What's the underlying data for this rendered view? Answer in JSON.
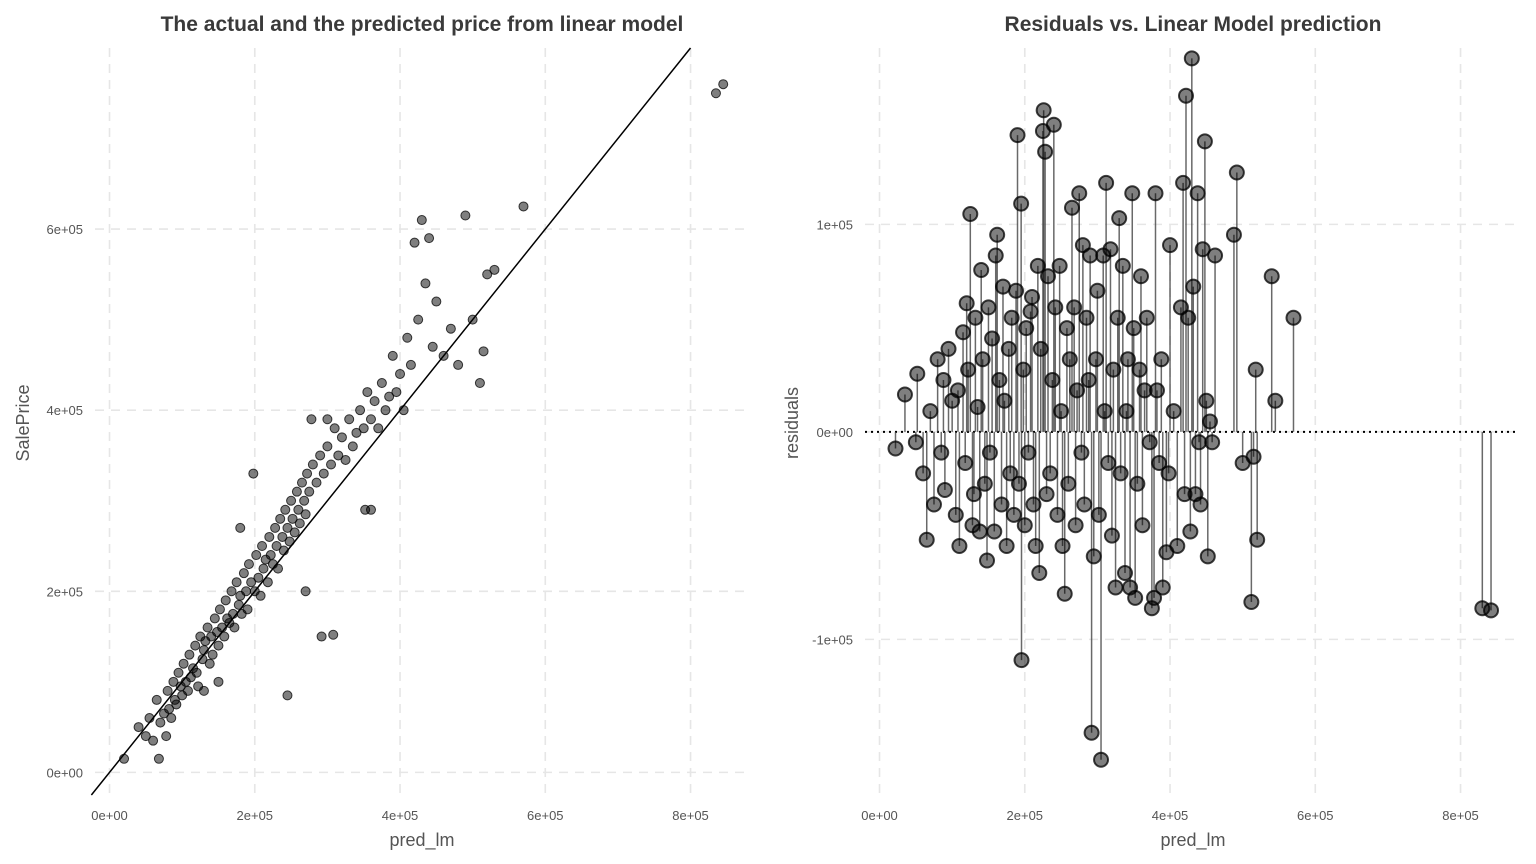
{
  "chart_data": [
    {
      "type": "scatter",
      "title": "The actual and the predicted price from linear model",
      "xlabel": "pred_lm",
      "ylabel": "SalePrice",
      "xlim": [
        -20000,
        875000
      ],
      "ylim": [
        -25000,
        800000
      ],
      "x_ticks": [
        0,
        200000,
        400000,
        600000,
        800000
      ],
      "x_tick_labels": [
        "0e+00",
        "2e+05",
        "4e+05",
        "6e+05",
        "8e+05"
      ],
      "y_ticks": [
        0,
        200000,
        400000,
        600000
      ],
      "y_tick_labels": [
        "0e+00",
        "2e+05",
        "4e+05",
        "6e+05"
      ],
      "grid": true,
      "point_color": "#000000",
      "point_opacity": 0.5,
      "reference_line": {
        "type": "identity",
        "slope": 1,
        "intercept": 0,
        "color": "#000000"
      },
      "points": [
        [
          20000,
          15000
        ],
        [
          40000,
          50000
        ],
        [
          50000,
          40000
        ],
        [
          55000,
          60000
        ],
        [
          60000,
          35000
        ],
        [
          65000,
          80000
        ],
        [
          68000,
          15000
        ],
        [
          70000,
          55000
        ],
        [
          75000,
          65000
        ],
        [
          78000,
          40000
        ],
        [
          80000,
          90000
        ],
        [
          82000,
          70000
        ],
        [
          85000,
          60000
        ],
        [
          88000,
          100000
        ],
        [
          90000,
          80000
        ],
        [
          92000,
          75000
        ],
        [
          95000,
          110000
        ],
        [
          98000,
          95000
        ],
        [
          100000,
          85000
        ],
        [
          102000,
          120000
        ],
        [
          105000,
          100000
        ],
        [
          108000,
          90000
        ],
        [
          110000,
          130000
        ],
        [
          112000,
          105000
        ],
        [
          115000,
          115000
        ],
        [
          118000,
          140000
        ],
        [
          120000,
          110000
        ],
        [
          122000,
          95000
        ],
        [
          125000,
          150000
        ],
        [
          128000,
          125000
        ],
        [
          130000,
          135000
        ],
        [
          132000,
          145000
        ],
        [
          135000,
          160000
        ],
        [
          138000,
          120000
        ],
        [
          140000,
          150000
        ],
        [
          142000,
          130000
        ],
        [
          145000,
          170000
        ],
        [
          148000,
          155000
        ],
        [
          150000,
          140000
        ],
        [
          152000,
          180000
        ],
        [
          155000,
          160000
        ],
        [
          158000,
          150000
        ],
        [
          160000,
          190000
        ],
        [
          162000,
          170000
        ],
        [
          165000,
          165000
        ],
        [
          168000,
          200000
        ],
        [
          170000,
          175000
        ],
        [
          172000,
          160000
        ],
        [
          175000,
          210000
        ],
        [
          178000,
          185000
        ],
        [
          180000,
          195000
        ],
        [
          182000,
          175000
        ],
        [
          185000,
          220000
        ],
        [
          188000,
          200000
        ],
        [
          190000,
          180000
        ],
        [
          192000,
          230000
        ],
        [
          195000,
          210000
        ],
        [
          198000,
          330000
        ],
        [
          200000,
          200000
        ],
        [
          202000,
          240000
        ],
        [
          205000,
          215000
        ],
        [
          208000,
          195000
        ],
        [
          210000,
          250000
        ],
        [
          212000,
          225000
        ],
        [
          215000,
          235000
        ],
        [
          218000,
          210000
        ],
        [
          220000,
          260000
        ],
        [
          222000,
          240000
        ],
        [
          225000,
          230000
        ],
        [
          228000,
          270000
        ],
        [
          230000,
          250000
        ],
        [
          232000,
          225000
        ],
        [
          235000,
          280000
        ],
        [
          238000,
          260000
        ],
        [
          240000,
          245000
        ],
        [
          242000,
          290000
        ],
        [
          245000,
          270000
        ],
        [
          248000,
          255000
        ],
        [
          250000,
          300000
        ],
        [
          252000,
          280000
        ],
        [
          255000,
          265000
        ],
        [
          258000,
          310000
        ],
        [
          260000,
          290000
        ],
        [
          262000,
          275000
        ],
        [
          265000,
          320000
        ],
        [
          268000,
          300000
        ],
        [
          270000,
          285000
        ],
        [
          272000,
          330000
        ],
        [
          275000,
          310000
        ],
        [
          278000,
          390000
        ],
        [
          280000,
          340000
        ],
        [
          285000,
          320000
        ],
        [
          290000,
          350000
        ],
        [
          292000,
          150000
        ],
        [
          295000,
          330000
        ],
        [
          300000,
          360000
        ],
        [
          305000,
          340000
        ],
        [
          308000,
          152000
        ],
        [
          310000,
          380000
        ],
        [
          315000,
          350000
        ],
        [
          320000,
          370000
        ],
        [
          325000,
          345000
        ],
        [
          330000,
          390000
        ],
        [
          335000,
          360000
        ],
        [
          340000,
          375000
        ],
        [
          345000,
          400000
        ],
        [
          350000,
          380000
        ],
        [
          352000,
          290000
        ],
        [
          355000,
          420000
        ],
        [
          360000,
          390000
        ],
        [
          365000,
          410000
        ],
        [
          370000,
          380000
        ],
        [
          375000,
          430000
        ],
        [
          380000,
          400000
        ],
        [
          385000,
          415000
        ],
        [
          390000,
          460000
        ],
        [
          395000,
          420000
        ],
        [
          400000,
          440000
        ],
        [
          405000,
          400000
        ],
        [
          410000,
          480000
        ],
        [
          415000,
          450000
        ],
        [
          420000,
          585000
        ],
        [
          425000,
          500000
        ],
        [
          430000,
          610000
        ],
        [
          435000,
          540000
        ],
        [
          440000,
          590000
        ],
        [
          445000,
          470000
        ],
        [
          450000,
          520000
        ],
        [
          460000,
          460000
        ],
        [
          470000,
          490000
        ],
        [
          480000,
          450000
        ],
        [
          490000,
          615000
        ],
        [
          500000,
          500000
        ],
        [
          510000,
          430000
        ],
        [
          515000,
          465000
        ],
        [
          520000,
          550000
        ],
        [
          530000,
          555000
        ],
        [
          570000,
          625000
        ],
        [
          835000,
          750000
        ],
        [
          845000,
          760000
        ],
        [
          245000,
          85000
        ],
        [
          180000,
          270000
        ],
        [
          300000,
          390000
        ],
        [
          360000,
          290000
        ],
        [
          270000,
          200000
        ],
        [
          150000,
          100000
        ],
        [
          130000,
          90000
        ]
      ]
    },
    {
      "type": "scatter",
      "title": "Residuals vs. Linear Model prediction",
      "xlabel": "pred_lm",
      "ylabel": "residuals",
      "xlim": [
        -20000,
        875000
      ],
      "ylim": [
        -175000,
        185000
      ],
      "x_ticks": [
        0,
        200000,
        400000,
        600000,
        800000
      ],
      "x_tick_labels": [
        "0e+00",
        "2e+05",
        "4e+05",
        "6e+05",
        "8e+05"
      ],
      "y_ticks": [
        -100000,
        0,
        100000
      ],
      "y_tick_labels": [
        "-1e+05",
        "0e+00",
        "1e+05"
      ],
      "grid": true,
      "point_color": "#000000",
      "point_opacity": 0.5,
      "zero_line": {
        "value": 0,
        "style": "dotted",
        "color": "#000000"
      },
      "stems": true,
      "points": [
        [
          22000,
          -8000
        ],
        [
          35000,
          18000
        ],
        [
          50000,
          -5000
        ],
        [
          52000,
          28000
        ],
        [
          60000,
          -20000
        ],
        [
          65000,
          -52000
        ],
        [
          70000,
          10000
        ],
        [
          75000,
          -35000
        ],
        [
          80000,
          35000
        ],
        [
          85000,
          -10000
        ],
        [
          88000,
          25000
        ],
        [
          90000,
          -28000
        ],
        [
          95000,
          40000
        ],
        [
          100000,
          15000
        ],
        [
          105000,
          -40000
        ],
        [
          108000,
          20000
        ],
        [
          110000,
          -55000
        ],
        [
          115000,
          48000
        ],
        [
          118000,
          -15000
        ],
        [
          120000,
          62000
        ],
        [
          122000,
          30000
        ],
        [
          125000,
          105000
        ],
        [
          128000,
          -45000
        ],
        [
          130000,
          -30000
        ],
        [
          132000,
          55000
        ],
        [
          135000,
          12000
        ],
        [
          138000,
          -48000
        ],
        [
          140000,
          78000
        ],
        [
          142000,
          35000
        ],
        [
          145000,
          -25000
        ],
        [
          148000,
          -62000
        ],
        [
          150000,
          60000
        ],
        [
          152000,
          -10000
        ],
        [
          155000,
          45000
        ],
        [
          158000,
          -48000
        ],
        [
          160000,
          85000
        ],
        [
          162000,
          95000
        ],
        [
          165000,
          25000
        ],
        [
          168000,
          -35000
        ],
        [
          170000,
          70000
        ],
        [
          172000,
          15000
        ],
        [
          175000,
          -55000
        ],
        [
          178000,
          40000
        ],
        [
          180000,
          -20000
        ],
        [
          182000,
          55000
        ],
        [
          185000,
          -40000
        ],
        [
          188000,
          68000
        ],
        [
          190000,
          143000
        ],
        [
          192000,
          -25000
        ],
        [
          195000,
          110000
        ],
        [
          195500,
          -110000
        ],
        [
          198000,
          30000
        ],
        [
          200000,
          -45000
        ],
        [
          202000,
          50000
        ],
        [
          205000,
          -10000
        ],
        [
          208000,
          58000
        ],
        [
          210000,
          65000
        ],
        [
          212000,
          -35000
        ],
        [
          215000,
          -55000
        ],
        [
          218000,
          80000
        ],
        [
          220000,
          -68000
        ],
        [
          222000,
          40000
        ],
        [
          225000,
          145000
        ],
        [
          226000,
          155000
        ],
        [
          228000,
          135000
        ],
        [
          230000,
          -30000
        ],
        [
          232000,
          75000
        ],
        [
          235000,
          -20000
        ],
        [
          238000,
          25000
        ],
        [
          240000,
          148000
        ],
        [
          242000,
          60000
        ],
        [
          245000,
          -40000
        ],
        [
          248000,
          80000
        ],
        [
          250000,
          10000
        ],
        [
          252000,
          -55000
        ],
        [
          255000,
          -78000
        ],
        [
          258000,
          50000
        ],
        [
          260000,
          -25000
        ],
        [
          262000,
          35000
        ],
        [
          265000,
          108000
        ],
        [
          268000,
          60000
        ],
        [
          270000,
          -45000
        ],
        [
          272000,
          20000
        ],
        [
          275000,
          115000
        ],
        [
          278000,
          -10000
        ],
        [
          280000,
          90000
        ],
        [
          282000,
          -35000
        ],
        [
          285000,
          55000
        ],
        [
          288000,
          25000
        ],
        [
          290000,
          85000
        ],
        [
          292000,
          -145000
        ],
        [
          295000,
          -60000
        ],
        [
          298000,
          35000
        ],
        [
          300000,
          68000
        ],
        [
          302000,
          -40000
        ],
        [
          305000,
          -158000
        ],
        [
          308000,
          85000
        ],
        [
          310000,
          10000
        ],
        [
          312000,
          120000
        ],
        [
          315000,
          -15000
        ],
        [
          318000,
          88000
        ],
        [
          320000,
          -50000
        ],
        [
          322000,
          30000
        ],
        [
          325000,
          -75000
        ],
        [
          328000,
          55000
        ],
        [
          330000,
          103000
        ],
        [
          332000,
          -20000
        ],
        [
          335000,
          80000
        ],
        [
          338000,
          -68000
        ],
        [
          340000,
          10000
        ],
        [
          342000,
          35000
        ],
        [
          345000,
          -75000
        ],
        [
          348000,
          115000
        ],
        [
          350000,
          50000
        ],
        [
          352000,
          -80000
        ],
        [
          355000,
          -25000
        ],
        [
          358000,
          30000
        ],
        [
          360000,
          75000
        ],
        [
          362000,
          -45000
        ],
        [
          365000,
          20000
        ],
        [
          368000,
          55000
        ],
        [
          372000,
          -5000
        ],
        [
          375000,
          -85000
        ],
        [
          378000,
          -80000
        ],
        [
          380000,
          115000
        ],
        [
          382000,
          20000
        ],
        [
          385000,
          -15000
        ],
        [
          388000,
          35000
        ],
        [
          390000,
          -75000
        ],
        [
          395000,
          -58000
        ],
        [
          398000,
          -20000
        ],
        [
          400000,
          90000
        ],
        [
          405000,
          10000
        ],
        [
          410000,
          -55000
        ],
        [
          415000,
          60000
        ],
        [
          418000,
          120000
        ],
        [
          420000,
          -30000
        ],
        [
          422000,
          162000
        ],
        [
          425000,
          55000
        ],
        [
          428000,
          -48000
        ],
        [
          430000,
          180000
        ],
        [
          432000,
          70000
        ],
        [
          435000,
          -30000
        ],
        [
          438000,
          115000
        ],
        [
          440000,
          -5000
        ],
        [
          442000,
          -35000
        ],
        [
          445000,
          88000
        ],
        [
          448000,
          140000
        ],
        [
          450000,
          15000
        ],
        [
          452000,
          -60000
        ],
        [
          455000,
          5000
        ],
        [
          458000,
          -5000
        ],
        [
          462000,
          85000
        ],
        [
          488000,
          95000
        ],
        [
          492000,
          125000
        ],
        [
          500000,
          -15000
        ],
        [
          512000,
          -82000
        ],
        [
          515000,
          -12000
        ],
        [
          518000,
          30000
        ],
        [
          520000,
          -52000
        ],
        [
          540000,
          75000
        ],
        [
          545000,
          15000
        ],
        [
          570000,
          55000
        ],
        [
          830000,
          -85000
        ],
        [
          842000,
          -86000
        ]
      ]
    }
  ]
}
